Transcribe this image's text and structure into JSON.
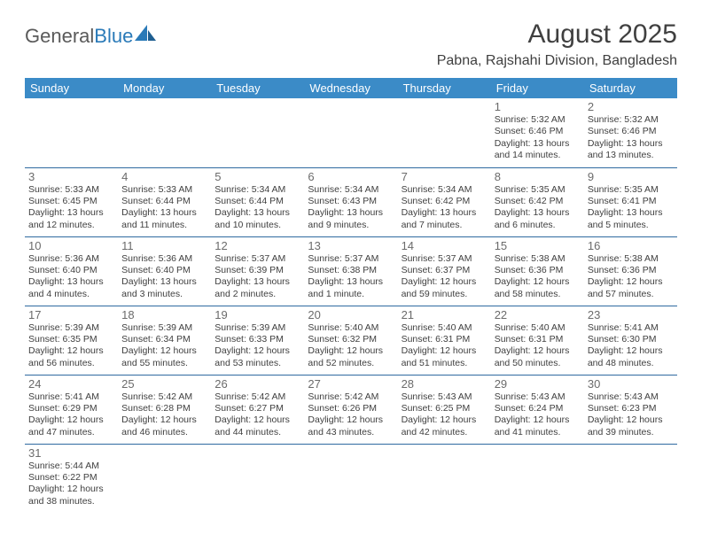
{
  "logo": {
    "word1": "General",
    "word2": "Blue"
  },
  "title": "August 2025",
  "location": "Pabna, Rajshahi Division, Bangladesh",
  "colors": {
    "header_bg": "#3b8bc7",
    "border": "#2f6aa0",
    "text": "#404040",
    "daynum": "#6b6b6b",
    "logo_gray": "#5a5a5a",
    "logo_blue": "#2a7ab8"
  },
  "weekdays": [
    "Sunday",
    "Monday",
    "Tuesday",
    "Wednesday",
    "Thursday",
    "Friday",
    "Saturday"
  ],
  "days": {
    "1": {
      "sunrise": "5:32 AM",
      "sunset": "6:46 PM",
      "daylight": "13 hours and 14 minutes."
    },
    "2": {
      "sunrise": "5:32 AM",
      "sunset": "6:46 PM",
      "daylight": "13 hours and 13 minutes."
    },
    "3": {
      "sunrise": "5:33 AM",
      "sunset": "6:45 PM",
      "daylight": "13 hours and 12 minutes."
    },
    "4": {
      "sunrise": "5:33 AM",
      "sunset": "6:44 PM",
      "daylight": "13 hours and 11 minutes."
    },
    "5": {
      "sunrise": "5:34 AM",
      "sunset": "6:44 PM",
      "daylight": "13 hours and 10 minutes."
    },
    "6": {
      "sunrise": "5:34 AM",
      "sunset": "6:43 PM",
      "daylight": "13 hours and 9 minutes."
    },
    "7": {
      "sunrise": "5:34 AM",
      "sunset": "6:42 PM",
      "daylight": "13 hours and 7 minutes."
    },
    "8": {
      "sunrise": "5:35 AM",
      "sunset": "6:42 PM",
      "daylight": "13 hours and 6 minutes."
    },
    "9": {
      "sunrise": "5:35 AM",
      "sunset": "6:41 PM",
      "daylight": "13 hours and 5 minutes."
    },
    "10": {
      "sunrise": "5:36 AM",
      "sunset": "6:40 PM",
      "daylight": "13 hours and 4 minutes."
    },
    "11": {
      "sunrise": "5:36 AM",
      "sunset": "6:40 PM",
      "daylight": "13 hours and 3 minutes."
    },
    "12": {
      "sunrise": "5:37 AM",
      "sunset": "6:39 PM",
      "daylight": "13 hours and 2 minutes."
    },
    "13": {
      "sunrise": "5:37 AM",
      "sunset": "6:38 PM",
      "daylight": "13 hours and 1 minute."
    },
    "14": {
      "sunrise": "5:37 AM",
      "sunset": "6:37 PM",
      "daylight": "12 hours and 59 minutes."
    },
    "15": {
      "sunrise": "5:38 AM",
      "sunset": "6:36 PM",
      "daylight": "12 hours and 58 minutes."
    },
    "16": {
      "sunrise": "5:38 AM",
      "sunset": "6:36 PM",
      "daylight": "12 hours and 57 minutes."
    },
    "17": {
      "sunrise": "5:39 AM",
      "sunset": "6:35 PM",
      "daylight": "12 hours and 56 minutes."
    },
    "18": {
      "sunrise": "5:39 AM",
      "sunset": "6:34 PM",
      "daylight": "12 hours and 55 minutes."
    },
    "19": {
      "sunrise": "5:39 AM",
      "sunset": "6:33 PM",
      "daylight": "12 hours and 53 minutes."
    },
    "20": {
      "sunrise": "5:40 AM",
      "sunset": "6:32 PM",
      "daylight": "12 hours and 52 minutes."
    },
    "21": {
      "sunrise": "5:40 AM",
      "sunset": "6:31 PM",
      "daylight": "12 hours and 51 minutes."
    },
    "22": {
      "sunrise": "5:40 AM",
      "sunset": "6:31 PM",
      "daylight": "12 hours and 50 minutes."
    },
    "23": {
      "sunrise": "5:41 AM",
      "sunset": "6:30 PM",
      "daylight": "12 hours and 48 minutes."
    },
    "24": {
      "sunrise": "5:41 AM",
      "sunset": "6:29 PM",
      "daylight": "12 hours and 47 minutes."
    },
    "25": {
      "sunrise": "5:42 AM",
      "sunset": "6:28 PM",
      "daylight": "12 hours and 46 minutes."
    },
    "26": {
      "sunrise": "5:42 AM",
      "sunset": "6:27 PM",
      "daylight": "12 hours and 44 minutes."
    },
    "27": {
      "sunrise": "5:42 AM",
      "sunset": "6:26 PM",
      "daylight": "12 hours and 43 minutes."
    },
    "28": {
      "sunrise": "5:43 AM",
      "sunset": "6:25 PM",
      "daylight": "12 hours and 42 minutes."
    },
    "29": {
      "sunrise": "5:43 AM",
      "sunset": "6:24 PM",
      "daylight": "12 hours and 41 minutes."
    },
    "30": {
      "sunrise": "5:43 AM",
      "sunset": "6:23 PM",
      "daylight": "12 hours and 39 minutes."
    },
    "31": {
      "sunrise": "5:44 AM",
      "sunset": "6:22 PM",
      "daylight": "12 hours and 38 minutes."
    }
  },
  "grid": [
    [
      null,
      null,
      null,
      null,
      null,
      "1",
      "2"
    ],
    [
      "3",
      "4",
      "5",
      "6",
      "7",
      "8",
      "9"
    ],
    [
      "10",
      "11",
      "12",
      "13",
      "14",
      "15",
      "16"
    ],
    [
      "17",
      "18",
      "19",
      "20",
      "21",
      "22",
      "23"
    ],
    [
      "24",
      "25",
      "26",
      "27",
      "28",
      "29",
      "30"
    ],
    [
      "31",
      null,
      null,
      null,
      null,
      null,
      null
    ]
  ]
}
